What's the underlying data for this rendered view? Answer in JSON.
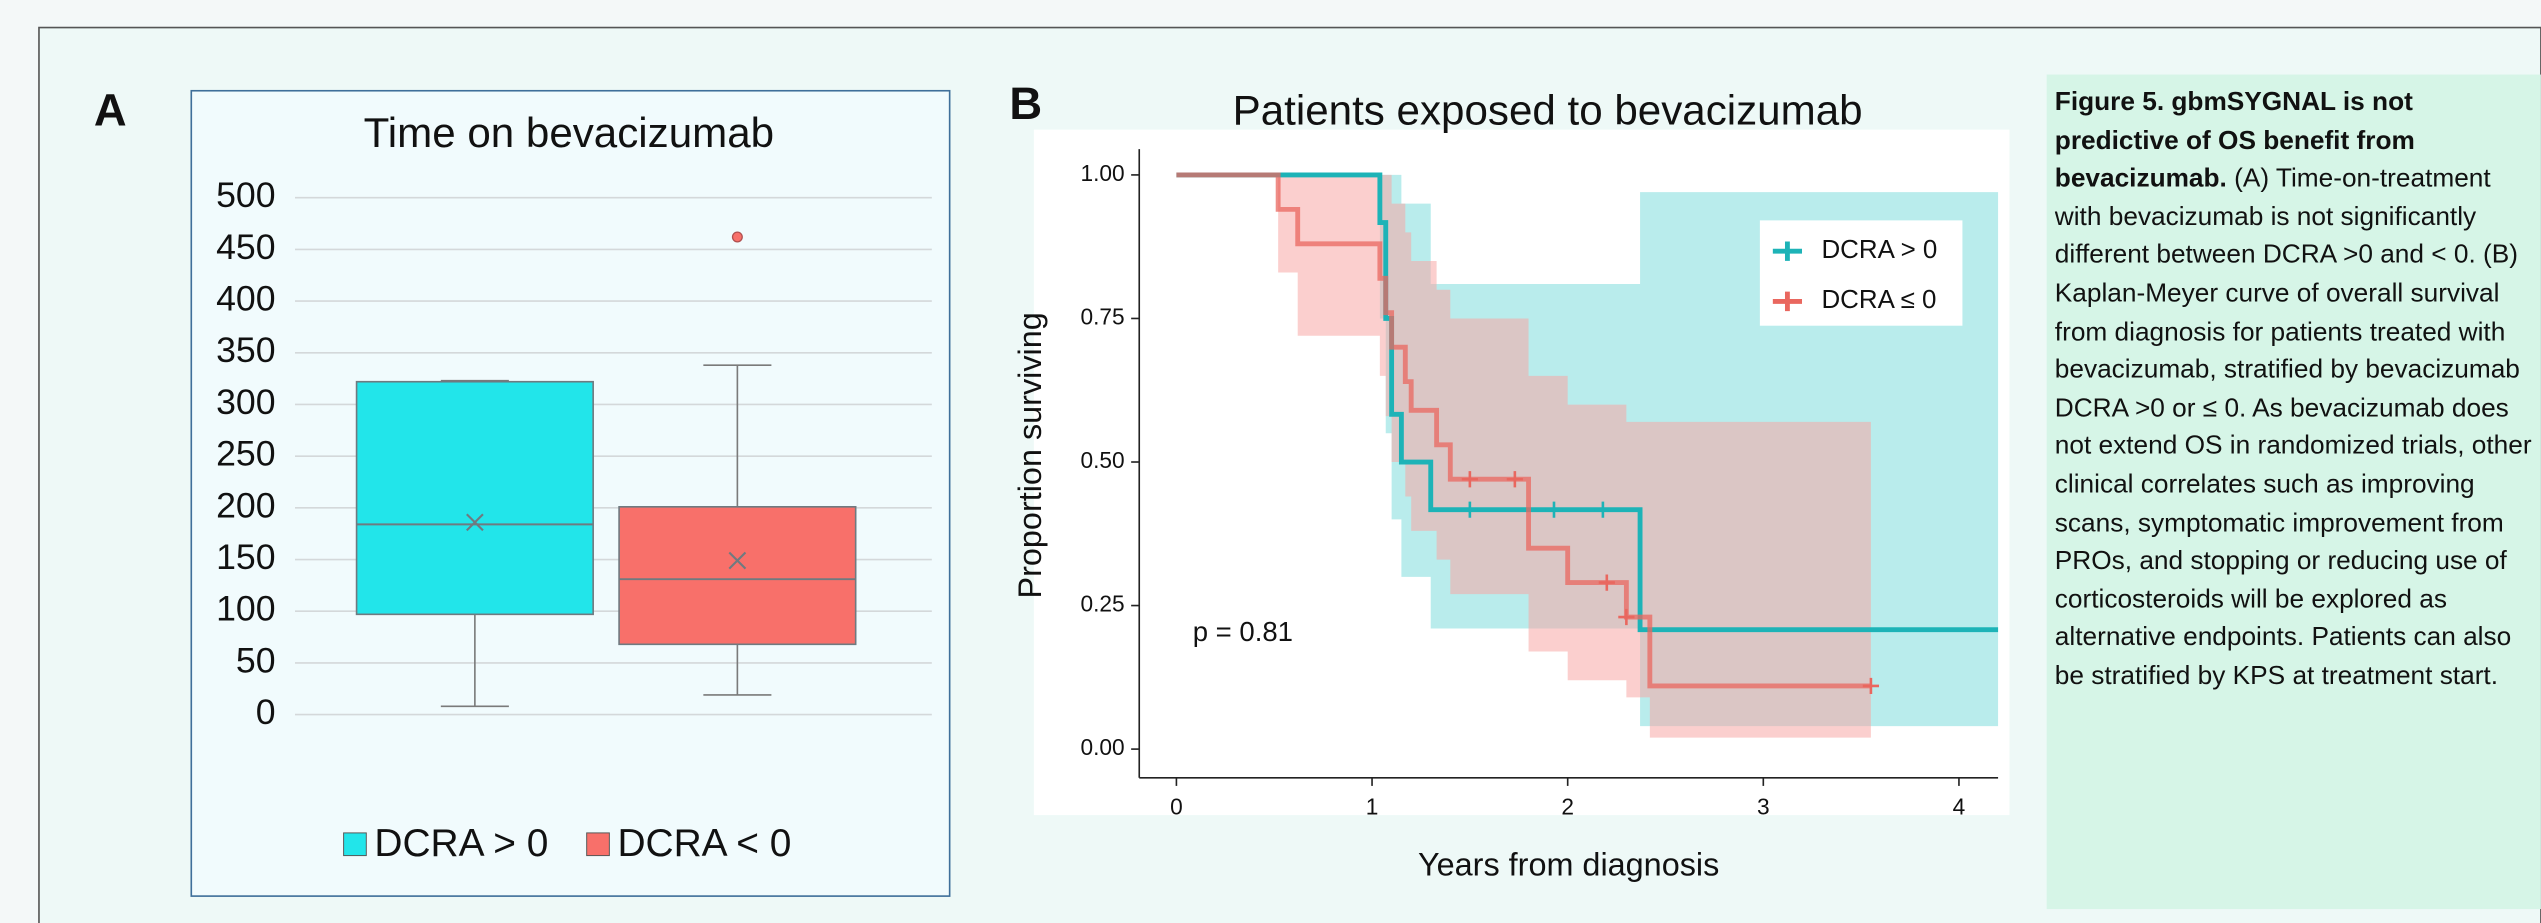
{
  "chart_data": [
    {
      "type": "box",
      "panel_label": "A",
      "title": "Time on bevacizumab",
      "ylim": [
        0,
        500
      ],
      "yticks": [
        0,
        50,
        100,
        150,
        200,
        250,
        300,
        350,
        400,
        450,
        500
      ],
      "grid": true,
      "series": [
        {
          "name": "DCRA > 0",
          "color": "#22e5ea",
          "whisker_low": 8,
          "q1": 97,
          "median": 184,
          "q3": 322,
          "whisker_high": 323,
          "mean": 186,
          "outliers": []
        },
        {
          "name": "DCRA < 0",
          "color": "#f8706a",
          "whisker_low": 19,
          "q1": 68,
          "median": 131,
          "q3": 201,
          "whisker_high": 338,
          "mean": 149,
          "outliers": [
            462
          ]
        }
      ]
    },
    {
      "type": "km",
      "panel_label": "B",
      "title": "Patients exposed to bevacizumab",
      "x_label": "Years from diagnosis",
      "y_label": "Proportion surviving",
      "annotation": "p = 0.81",
      "xlim": [
        -0.19,
        4.2
      ],
      "ylim": [
        -0.05,
        1.045
      ],
      "xticks": [
        0,
        1,
        2,
        3,
        4
      ],
      "yticks": [
        {
          "value": 0,
          "label": "0.00"
        },
        {
          "value": 0.25,
          "label": "0.25"
        },
        {
          "value": 0.5,
          "label": "0.50"
        },
        {
          "value": 0.75,
          "label": "0.75"
        },
        {
          "value": 1,
          "label": "1.00"
        }
      ],
      "legend": "upper right",
      "series": [
        {
          "name": "DCRA > 0",
          "color": "#1db3b7",
          "band_color": "#7fdcdc",
          "x": [
            0,
            1.04,
            1.07,
            1.1,
            1.15,
            1.3,
            2.37,
            4.2
          ],
          "values": [
            1,
            0.917,
            0.75,
            0.583,
            0.5,
            0.417,
            0.208,
            0.208
          ],
          "lower": [
            1,
            0.75,
            0.55,
            0.4,
            0.3,
            0.21,
            0.04,
            0.04
          ],
          "upper": [
            1,
            1,
            1,
            1,
            0.95,
            0.81,
            0.97,
            0.97
          ],
          "censored_x": [
            1.5,
            1.93,
            2.18
          ],
          "censored_y": [
            0.417,
            0.417,
            0.417
          ]
        },
        {
          "name": "DCRA ≤ 0",
          "color": "#e9675f",
          "band_color": "#f8a8a6",
          "x": [
            0,
            0.52,
            0.62,
            1.04,
            1.07,
            1.1,
            1.17,
            1.2,
            1.33,
            1.4,
            1.8,
            2.0,
            2.3,
            2.42,
            3.55
          ],
          "values": [
            1,
            0.94,
            0.88,
            0.82,
            0.76,
            0.7,
            0.64,
            0.59,
            0.53,
            0.47,
            0.35,
            0.29,
            0.23,
            0.11,
            0.11
          ],
          "lower": [
            1,
            0.83,
            0.72,
            0.65,
            0.58,
            0.5,
            0.44,
            0.38,
            0.33,
            0.27,
            0.17,
            0.12,
            0.09,
            0.02,
            0.02
          ],
          "upper": [
            1,
            1,
            1,
            1,
            1,
            0.95,
            0.9,
            0.85,
            0.8,
            0.75,
            0.65,
            0.6,
            0.57,
            0.57,
            0.57
          ],
          "censored_x": [
            1.5,
            1.73,
            2.2,
            2.3,
            3.55
          ],
          "censored_y": [
            0.47,
            0.47,
            0.29,
            0.23,
            0.11
          ]
        }
      ]
    }
  ],
  "caption": {
    "bold": "Figure 5. gbmSYGNAL is not predictive of OS benefit from bevacizumab.",
    "text": "(A) Time-on-treatment with bevacizumab is not significantly different between DCRA >0 and < 0. (B) Kaplan-Meyer curve of overall survival from diagnosis for patients treated with bevacizumab, stratified by bevacizumab DCRA >0 or ≤ 0. As bevacizumab does not extend OS in randomized trials, other clinical correlates such as improving scans, symptomatic improvement from PROs, and stopping or reducing use of corticosteroids will be explored as alternative endpoints. Patients can also be stratified by KPS at treatment start."
  }
}
